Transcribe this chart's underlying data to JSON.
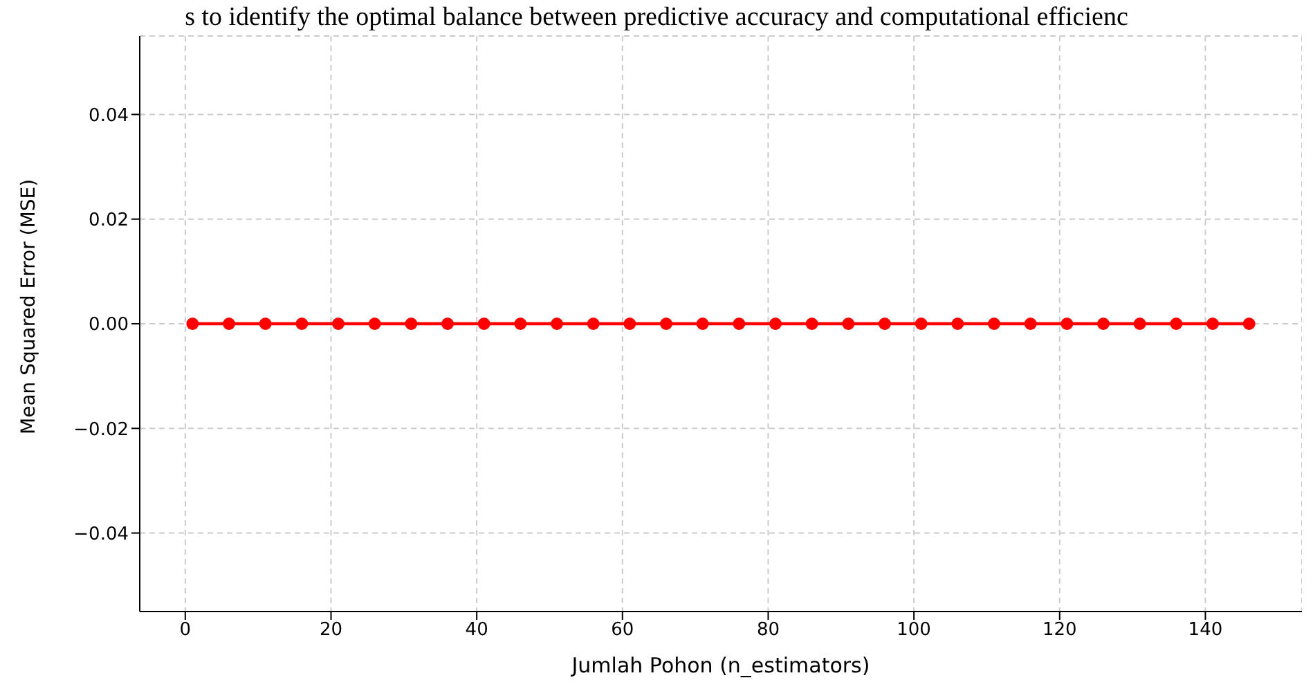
{
  "chart_data": {
    "type": "line",
    "annotations": [
      "s to identify the optimal balance between predictive accuracy and computational efficienc"
    ],
    "xlabel": "Jumlah Pohon (n_estimators)",
    "ylabel": "Mean Squared Error (MSE)",
    "x": [
      1,
      6,
      11,
      16,
      21,
      26,
      31,
      36,
      41,
      46,
      51,
      56,
      61,
      66,
      71,
      76,
      81,
      86,
      91,
      96,
      101,
      106,
      111,
      116,
      121,
      126,
      131,
      136,
      141,
      146
    ],
    "series": [
      {
        "color": "#ff0000",
        "values": [
          0,
          0,
          0,
          0,
          0,
          0,
          0,
          0,
          0,
          0,
          0,
          0,
          0,
          0,
          0,
          0,
          0,
          0,
          0,
          0,
          0,
          0,
          0,
          0,
          0,
          0,
          0,
          0,
          0,
          0
        ]
      }
    ],
    "xlim": [
      -6.25,
      153.25
    ],
    "xticks": [
      0,
      20,
      40,
      60,
      80,
      100,
      120,
      140
    ],
    "ylim": [
      -0.055,
      0.055
    ],
    "yticks": [
      -0.04,
      -0.02,
      {
        "value": 0,
        "label": "0.00"
      },
      0.02,
      0.04
    ],
    "grid": true,
    "legend": false,
    "marker": "circle",
    "line_style": "solid"
  }
}
